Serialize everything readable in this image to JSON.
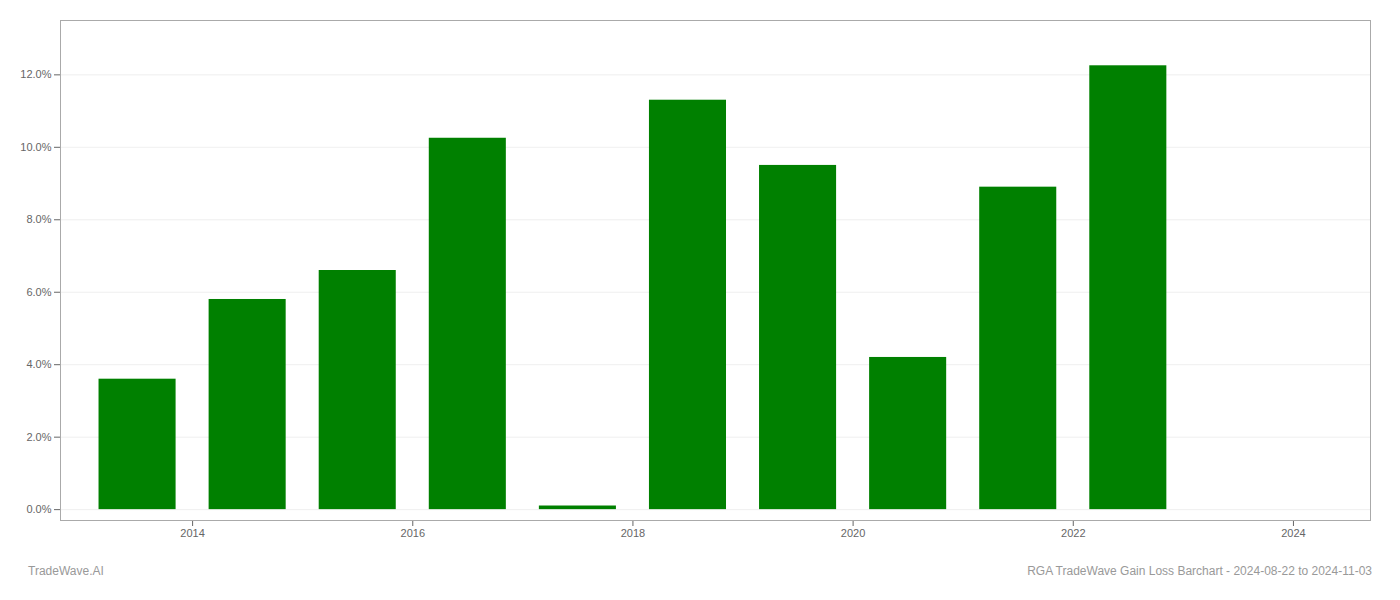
{
  "chart_data": {
    "type": "bar",
    "x": [
      2013.5,
      2014.5,
      2015.5,
      2016.5,
      2017.5,
      2018.5,
      2019.5,
      2020.5,
      2021.5,
      2022.5
    ],
    "values": [
      0.036,
      0.058,
      0.066,
      0.1025,
      0.001,
      0.113,
      0.095,
      0.042,
      0.089,
      0.1225
    ],
    "color": "#008000",
    "xlim": [
      2012.8,
      2024.7
    ],
    "xticks": [
      2014,
      2016,
      2018,
      2020,
      2022,
      2024
    ],
    "ylim": [
      -0.003,
      0.135
    ],
    "yticks": [
      {
        "value": 0.0,
        "label": "0.0%"
      },
      {
        "value": 0.02,
        "label": "2.0%"
      },
      {
        "value": 0.04,
        "label": "4.0%"
      },
      {
        "value": 0.06,
        "label": "6.0%"
      },
      {
        "value": 0.08,
        "label": "8.0%"
      },
      {
        "value": 0.1,
        "label": "10.0%"
      },
      {
        "value": 0.12,
        "label": "12.0%"
      }
    ],
    "grid": true,
    "annotations": [
      "TradeWave.AI",
      "RGA TradeWave Gain Loss Barchart - 2024-08-22 to 2024-11-03"
    ]
  }
}
